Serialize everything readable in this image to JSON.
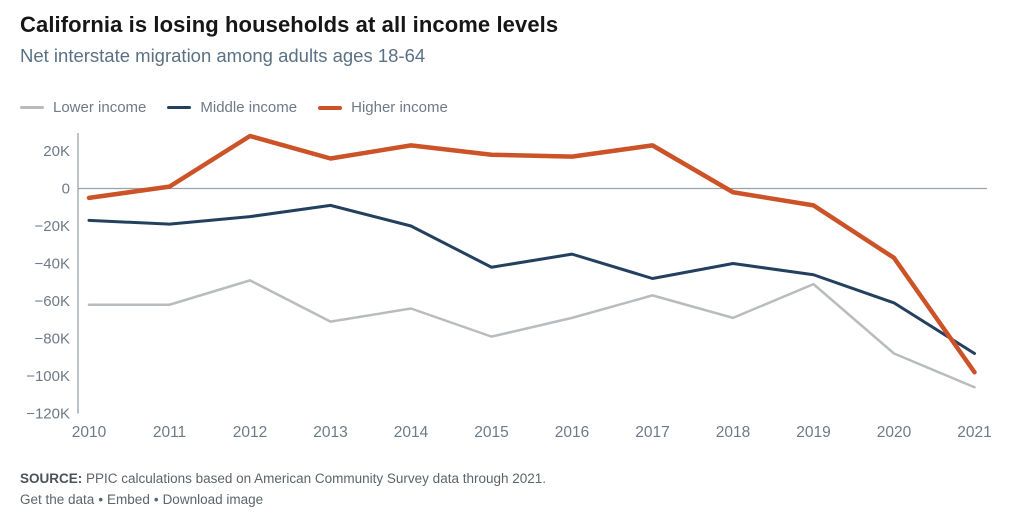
{
  "chart_data": {
    "type": "line",
    "title": "California is losing households at all income levels",
    "subtitle": "Net interstate migration among adults ages 18-64",
    "xlabel": "",
    "ylabel": "",
    "unit": "people (values in thousands, K)",
    "x": [
      2010,
      2011,
      2012,
      2013,
      2014,
      2015,
      2016,
      2017,
      2018,
      2019,
      2020,
      2021
    ],
    "x_tick_labels": [
      "2010",
      "2011",
      "2012",
      "2013",
      "2014",
      "2015",
      "2016",
      "2017",
      "2018",
      "2019",
      "2020",
      "2021"
    ],
    "series": [
      {
        "name": "Lower income",
        "color": "#b9bcbe",
        "width": 2.5,
        "values": [
          -62,
          -62,
          -49,
          -71,
          -64,
          -79,
          -69,
          -57,
          -69,
          -51,
          -88,
          -106
        ]
      },
      {
        "name": "Middle income",
        "color": "#24405f",
        "width": 3,
        "values": [
          -17,
          -19,
          -15,
          -9,
          -20,
          -42,
          -35,
          -48,
          -40,
          -46,
          -61,
          -88
        ]
      },
      {
        "name": "Higher income",
        "color": "#cc5327",
        "width": 4.5,
        "values": [
          -5,
          1,
          28,
          16,
          23,
          18,
          17,
          23,
          -2,
          -9,
          -37,
          -98
        ]
      }
    ],
    "ylim": [
      -120,
      30
    ],
    "y_ticks": [
      20,
      0,
      -20,
      -40,
      -60,
      -80,
      -100,
      -120
    ],
    "y_tick_labels": [
      "20K",
      "0",
      "−20K",
      "−40K",
      "−60K",
      "−80K",
      "−100K",
      "−120K"
    ],
    "grid": false,
    "zero_line": true,
    "legend_position": "top-left",
    "colors": {
      "axis": "#9aa2a8",
      "tick_text": "#6e7a87"
    }
  },
  "footer": {
    "source_label": "SOURCE:",
    "source_text": "PPIC calculations based on American Community Survey data through 2021.",
    "links": [
      "Get the data",
      "Embed",
      "Download image"
    ],
    "link_separator": "•"
  }
}
